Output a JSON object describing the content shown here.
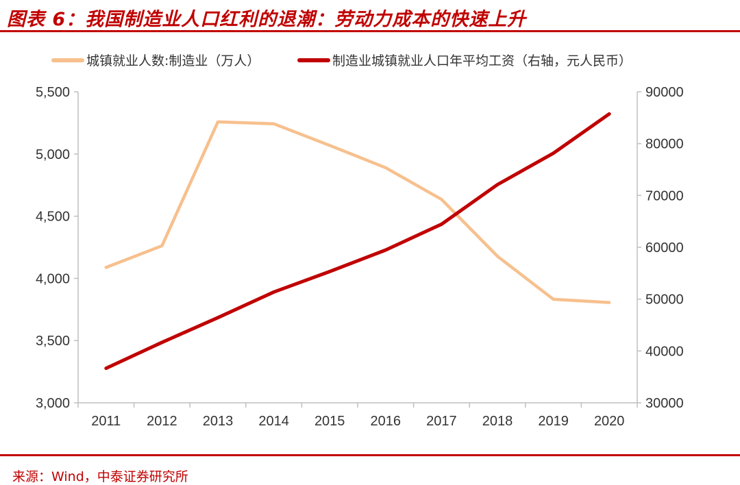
{
  "header": {
    "title": "图表 6：我国制造业人口红利的退潮：劳动力成本的快速上升"
  },
  "footer": {
    "source": "来源：Wind，中泰证券研究所"
  },
  "colors": {
    "accent": "#c00000",
    "series1": "#f7c08e",
    "series2": "#c00000"
  },
  "chart_data": {
    "type": "line",
    "title": "图表 6：我国制造业人口红利的退潮：劳动力成本的快速上升",
    "categories": [
      "2011",
      "2012",
      "2013",
      "2014",
      "2015",
      "2016",
      "2017",
      "2018",
      "2019",
      "2020"
    ],
    "series": [
      {
        "name": "城镇就业人数:制造业（万人）",
        "axis": "left",
        "color": "#f7c08e",
        "values": [
          4088,
          4262,
          5258,
          5243,
          5069,
          4890,
          4635,
          4178,
          3832,
          3806
        ]
      },
      {
        "name": "制造业城镇就业人口年平均工资（右轴，元人民币）",
        "axis": "right",
        "color": "#c00000",
        "values": [
          36665,
          41650,
          46431,
          51369,
          55324,
          59470,
          64452,
          72088,
          78147,
          85736
        ]
      }
    ],
    "y_left": {
      "min": 3000,
      "max": 5500,
      "ticks": [
        "3,000",
        "3,500",
        "4,000",
        "4,500",
        "5,000",
        "5,500"
      ]
    },
    "y_right": {
      "min": 30000,
      "max": 90000,
      "ticks": [
        "30000",
        "40000",
        "50000",
        "60000",
        "70000",
        "80000",
        "90000"
      ]
    },
    "legend": "top",
    "grid": false
  }
}
